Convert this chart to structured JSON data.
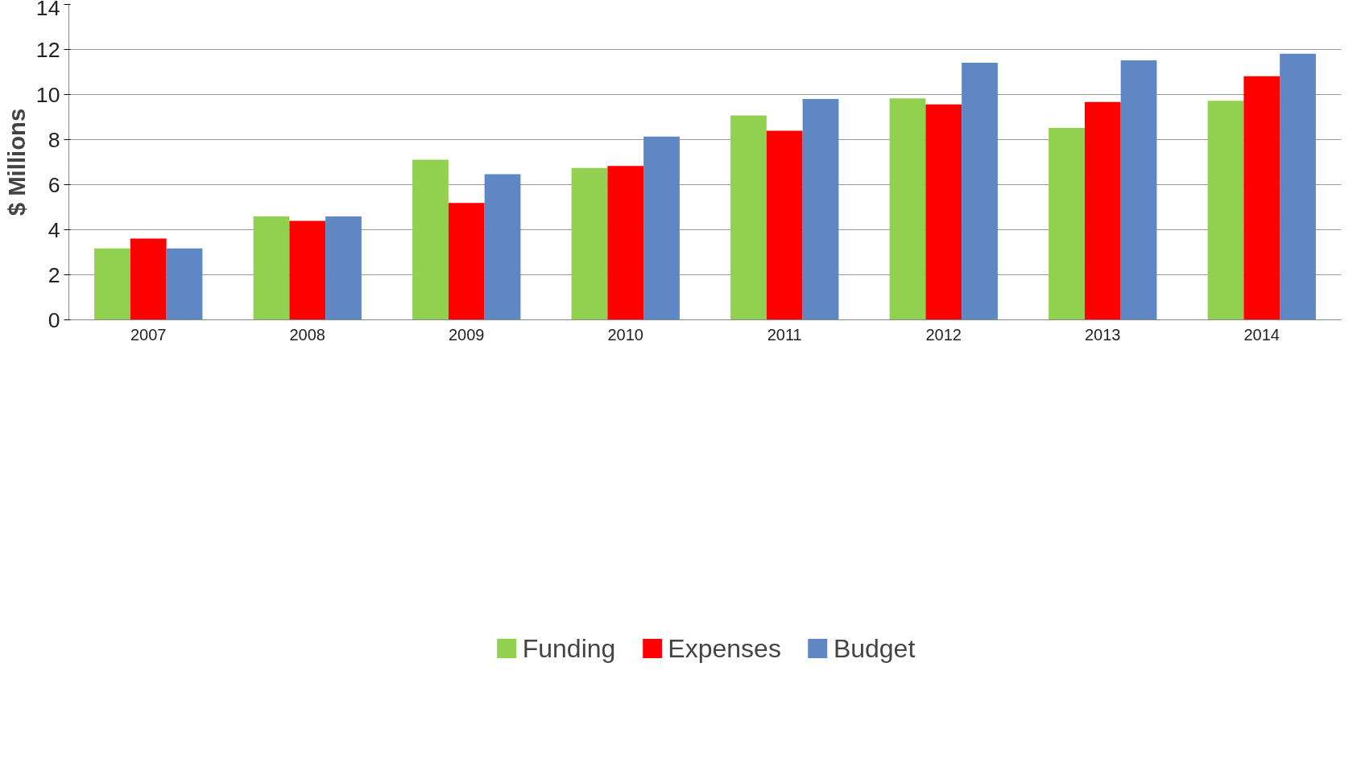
{
  "chart_data": {
    "type": "bar",
    "ylabel": "$ Millions",
    "categories": [
      "2007",
      "2008",
      "2009",
      "2010",
      "2011",
      "2012",
      "2013",
      "2014"
    ],
    "series": [
      {
        "name": "Funding",
        "color": "#92d050",
        "values": [
          3.17,
          4.59,
          7.11,
          6.74,
          9.07,
          9.83,
          8.52,
          9.72
        ]
      },
      {
        "name": "Expenses",
        "color": "#ff0000",
        "values": [
          3.61,
          4.39,
          5.19,
          6.83,
          8.39,
          9.56,
          9.67,
          10.81
        ]
      },
      {
        "name": "Budget",
        "color": "#5f87c3",
        "values": [
          3.17,
          4.59,
          6.46,
          8.13,
          9.8,
          11.41,
          11.52,
          11.81
        ]
      }
    ],
    "ylim": [
      0,
      14
    ],
    "yticks": [
      0,
      2,
      4,
      6,
      8,
      10,
      12,
      14
    ],
    "grid": "y",
    "legend": "bottom"
  }
}
